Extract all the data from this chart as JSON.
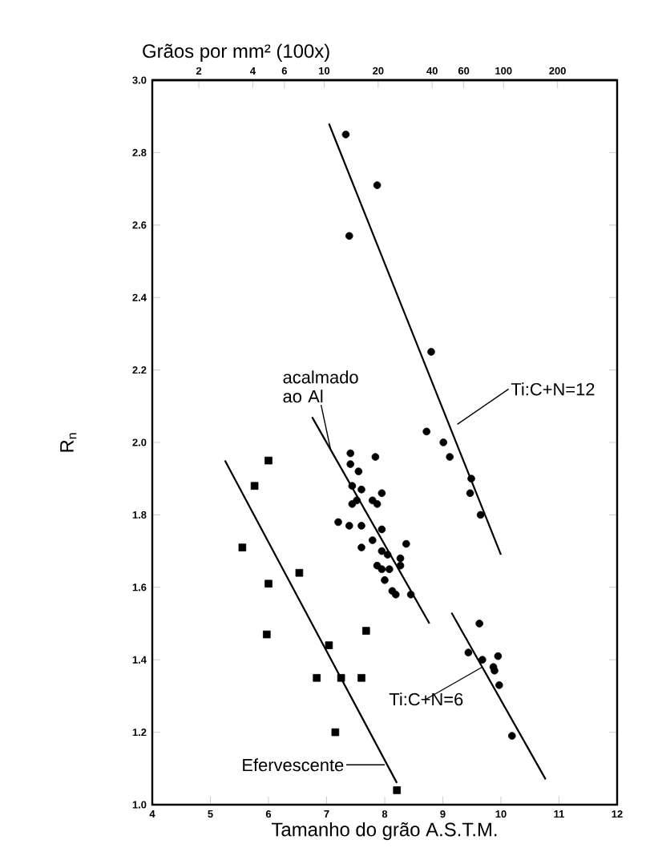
{
  "chart_data": {
    "type": "scatter",
    "xlabel": "Tamanho do grão A.S.T.M.",
    "ylabel": "R$_{n}$",
    "x2label": "Grãos por mm² (100x)",
    "xlim": [
      4,
      12
    ],
    "xticks": [
      4,
      5,
      6,
      7,
      8,
      9,
      10,
      11,
      12
    ],
    "ylim": [
      1.0,
      3.0
    ],
    "yticks": [
      {
        "value": 1.0,
        "label": "1.0"
      },
      1.2,
      1.4,
      1.6,
      1.8,
      {
        "value": 2.0,
        "label": "2.0"
      },
      2.2,
      2.4,
      2.6,
      2.8,
      {
        "value": 3.0,
        "label": "3.0"
      }
    ],
    "x2lim": [
      1.1,
      430
    ],
    "x2ticks": [
      2,
      4,
      6,
      10,
      20,
      40,
      60,
      100,
      200
    ],
    "log": "x2",
    "grid": false,
    "series": [
      {
        "color": "#000000",
        "marker": "circle",
        "x": [
          7.33,
          7.87,
          7.39,
          8.8,
          8.72,
          9.01,
          9.12,
          9.49,
          9.47,
          9.65
        ],
        "values": [
          2.85,
          2.71,
          2.57,
          2.25,
          2.03,
          2.0,
          1.96,
          1.9,
          1.86,
          1.8
        ]
      },
      {
        "color": "#000000",
        "marker": "circle",
        "x": [
          7.41,
          7.84,
          7.41,
          7.55,
          7.44,
          7.6,
          7.95,
          7.52,
          7.79,
          7.87,
          7.44,
          7.2,
          7.39,
          7.6,
          7.95,
          7.79,
          7.6,
          8.37,
          7.95,
          8.05,
          8.27,
          7.87,
          8.08,
          8.27,
          8.0,
          8.13,
          8.45,
          8.19,
          7.95
        ],
        "values": [
          1.97,
          1.96,
          1.94,
          1.92,
          1.88,
          1.87,
          1.86,
          1.84,
          1.84,
          1.83,
          1.83,
          1.78,
          1.77,
          1.77,
          1.76,
          1.73,
          1.71,
          1.72,
          1.7,
          1.69,
          1.68,
          1.66,
          1.65,
          1.66,
          1.62,
          1.59,
          1.58,
          1.58,
          1.65
        ]
      },
      {
        "color": "#000000",
        "marker": "circle",
        "x": [
          9.63,
          9.44,
          9.68,
          9.87,
          9.95,
          9.89,
          9.97,
          10.19
        ],
        "values": [
          1.5,
          1.42,
          1.4,
          1.38,
          1.41,
          1.37,
          1.33,
          1.19
        ]
      },
      {
        "color": "#000000",
        "marker": "square",
        "x": [
          6.0,
          5.76,
          5.55,
          6.0,
          6.53,
          5.97,
          7.04,
          6.83,
          7.25,
          7.6,
          7.68,
          7.15,
          8.21
        ],
        "values": [
          1.95,
          1.88,
          1.71,
          1.61,
          1.64,
          1.47,
          1.44,
          1.35,
          1.35,
          1.35,
          1.48,
          1.2,
          1.04
        ]
      },
      {
        "type": "line",
        "color": "#000000",
        "marker": "none",
        "line_style": "solid",
        "x": [
          7.04,
          10.0
        ],
        "values": [
          2.88,
          1.69
        ]
      },
      {
        "type": "line",
        "color": "#000000",
        "marker": "none",
        "line_style": "solid",
        "x": [
          6.75,
          8.77
        ],
        "values": [
          2.07,
          1.5
        ]
      },
      {
        "type": "line",
        "color": "#000000",
        "marker": "none",
        "line_style": "solid",
        "x": [
          9.15,
          10.77
        ],
        "values": [
          1.53,
          1.07
        ]
      },
      {
        "type": "line",
        "color": "#000000",
        "marker": "none",
        "line_style": "solid",
        "x": [
          5.25,
          8.21
        ],
        "values": [
          1.95,
          1.06
        ]
      }
    ],
    "annotations": [
      {
        "text": "Ti:C+N=12",
        "x": 9.25,
        "y": 2.05
      },
      {
        "text": "acalmado ao Al",
        "x": 7.07,
        "y": 1.98
      },
      {
        "text": "Ti:C+N=6",
        "x": 9.68,
        "y": 1.38
      },
      {
        "text": "Efervescente",
        "x": 8.0,
        "y": 1.11
      }
    ]
  }
}
